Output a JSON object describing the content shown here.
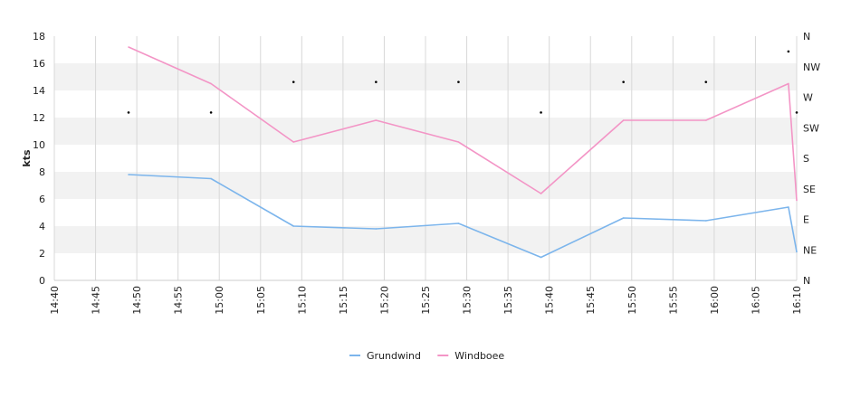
{
  "chart_data": {
    "type": "line",
    "ylabel": "kts",
    "ylim": [
      0,
      18
    ],
    "y_ticks": [
      "0",
      "2",
      "4",
      "6",
      "8",
      "10",
      "12",
      "14",
      "16",
      "18"
    ],
    "x_ticks": [
      "14:40",
      "14:45",
      "14:50",
      "14:55",
      "15:00",
      "15:05",
      "15:10",
      "15:15",
      "15:20",
      "15:25",
      "15:30",
      "15:35",
      "15:40",
      "15:45",
      "15:50",
      "15:55",
      "16:00",
      "16:05",
      "16:10"
    ],
    "xlim": [
      "14:40",
      "16:10"
    ],
    "right_axis_labels": [
      "N",
      "NE",
      "E",
      "SE",
      "S",
      "SW",
      "W",
      "NW",
      "N"
    ],
    "grid": "vertical lines at each x tick, alternating horizontal bands",
    "legend_position": "bottom-center",
    "series": [
      {
        "name": "Grundwind",
        "color": "#7cb5ec",
        "x": [
          "14:49",
          "14:59",
          "15:09",
          "15:19",
          "15:29",
          "15:39",
          "15:49",
          "15:59",
          "16:09",
          "16:10"
        ],
        "values": [
          7.8,
          7.5,
          4.0,
          3.8,
          4.2,
          1.7,
          4.6,
          4.4,
          5.4,
          2.1
        ]
      },
      {
        "name": "Windboee",
        "color": "#f395c6",
        "x": [
          "14:49",
          "14:59",
          "15:09",
          "15:19",
          "15:29",
          "15:39",
          "15:49",
          "15:59",
          "16:09",
          "16:10"
        ],
        "values": [
          17.2,
          14.5,
          10.2,
          11.8,
          10.2,
          6.4,
          11.8,
          11.8,
          14.5,
          5.9
        ]
      }
    ],
    "direction_markers": {
      "x": [
        "14:49",
        "14:59",
        "15:09",
        "15:19",
        "15:29",
        "15:39",
        "15:49",
        "15:59",
        "16:09",
        "16:10"
      ],
      "values": [
        "SW",
        "SW",
        "W",
        "W",
        "W",
        "SW",
        "W",
        "W",
        "NW",
        "SW"
      ]
    }
  }
}
